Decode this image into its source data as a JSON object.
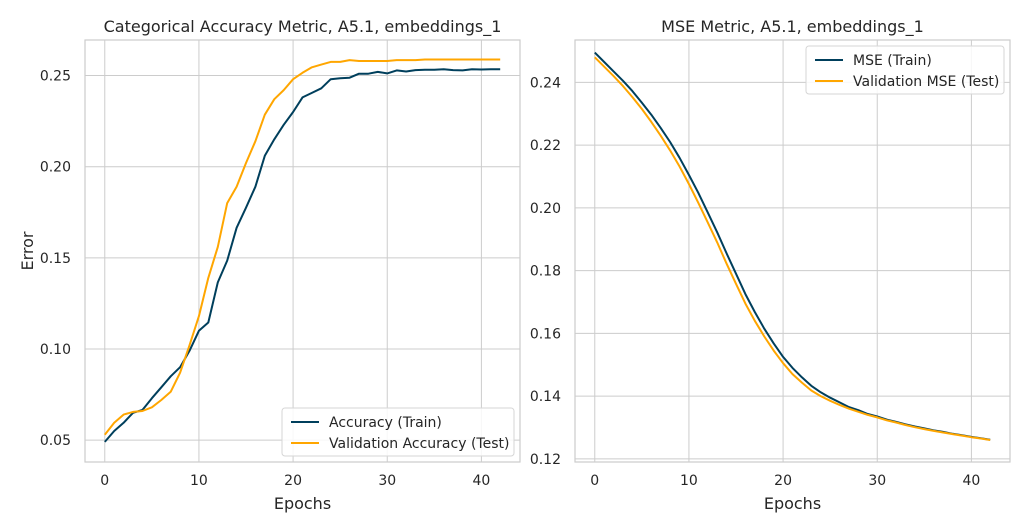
{
  "colors": {
    "train": "#003f5c",
    "test": "#ffa600",
    "grid": "#cccccc",
    "frame": "#cccccc"
  },
  "chart_data": [
    {
      "type": "line",
      "title": "Categorical Accuracy Metric, A5.1, embeddings_1",
      "xlabel": "Epochs",
      "ylabel": "Error",
      "xlim": [
        -2.1,
        44.1
      ],
      "ylim": [
        0.038,
        0.2695
      ],
      "xticks": [
        0,
        10,
        20,
        30,
        40
      ],
      "yticks": [
        0.05,
        0.1,
        0.15,
        0.2,
        0.25
      ],
      "ytick_labels": [
        "0.05",
        "0.10",
        "0.15",
        "0.20",
        "0.25"
      ],
      "grid": true,
      "legend_position": "lower-right",
      "x": [
        0,
        1,
        2,
        3,
        4,
        5,
        6,
        7,
        8,
        9,
        10,
        11,
        12,
        13,
        14,
        15,
        16,
        17,
        18,
        19,
        20,
        21,
        22,
        23,
        24,
        25,
        26,
        27,
        28,
        29,
        30,
        31,
        32,
        33,
        34,
        35,
        36,
        37,
        38,
        39,
        40,
        41,
        42
      ],
      "series": [
        {
          "name": "Accuracy (Train)",
          "color": "#003f5c",
          "values": [
            0.049,
            0.055,
            0.0595,
            0.065,
            0.0665,
            0.073,
            0.079,
            0.085,
            0.09,
            0.099,
            0.11,
            0.1145,
            0.1365,
            0.1485,
            0.1665,
            0.1775,
            0.189,
            0.206,
            0.215,
            0.223,
            0.23,
            0.238,
            0.2405,
            0.243,
            0.248,
            0.2485,
            0.2488,
            0.251,
            0.251,
            0.252,
            0.2512,
            0.2528,
            0.2522,
            0.253,
            0.2532,
            0.2532,
            0.2535,
            0.253,
            0.2528,
            0.2535,
            0.2533,
            0.2535,
            0.2535
          ]
        },
        {
          "name": "Validation Accuracy (Test)",
          "color": "#ffa600",
          "values": [
            0.053,
            0.0595,
            0.064,
            0.0655,
            0.066,
            0.068,
            0.072,
            0.0765,
            0.087,
            0.102,
            0.118,
            0.139,
            0.156,
            0.18,
            0.189,
            0.202,
            0.214,
            0.2285,
            0.237,
            0.242,
            0.248,
            0.2515,
            0.2545,
            0.256,
            0.2575,
            0.2575,
            0.2585,
            0.258,
            0.258,
            0.258,
            0.258,
            0.2585,
            0.2585,
            0.2585,
            0.2588,
            0.2588,
            0.2588,
            0.2588,
            0.2588,
            0.2588,
            0.2588,
            0.2588,
            0.2588
          ]
        }
      ]
    },
    {
      "type": "line",
      "title": "MSE Metric, A5.1, embeddings_1",
      "xlabel": "Epochs",
      "ylabel": "",
      "xlim": [
        -2.1,
        44.1
      ],
      "ylim": [
        0.119,
        0.2535
      ],
      "xticks": [
        0,
        10,
        20,
        30,
        40
      ],
      "yticks": [
        0.12,
        0.14,
        0.16,
        0.18,
        0.2,
        0.22,
        0.24
      ],
      "ytick_labels": [
        "0.12",
        "0.14",
        "0.16",
        "0.18",
        "0.20",
        "0.22",
        "0.24"
      ],
      "grid": true,
      "legend_position": "top-right",
      "x": [
        0,
        1,
        2,
        3,
        4,
        5,
        6,
        7,
        8,
        9,
        10,
        11,
        12,
        13,
        14,
        15,
        16,
        17,
        18,
        19,
        20,
        21,
        22,
        23,
        24,
        25,
        26,
        27,
        28,
        29,
        30,
        31,
        32,
        33,
        34,
        35,
        36,
        37,
        38,
        39,
        40,
        41,
        42
      ],
      "series": [
        {
          "name": "MSE (Train)",
          "color": "#003f5c",
          "values": [
            0.2495,
            0.2465,
            0.2435,
            0.2405,
            0.2372,
            0.2335,
            0.2297,
            0.2255,
            0.221,
            0.216,
            0.2105,
            0.2048,
            0.1985,
            0.1922,
            0.1855,
            0.179,
            0.1725,
            0.1668,
            0.1615,
            0.1568,
            0.1525,
            0.149,
            0.146,
            0.1433,
            0.1412,
            0.1395,
            0.138,
            0.1365,
            0.1355,
            0.1343,
            0.1335,
            0.1325,
            0.1318,
            0.131,
            0.1303,
            0.1297,
            0.1291,
            0.1286,
            0.128,
            0.1275,
            0.127,
            0.1266,
            0.1261
          ]
        },
        {
          "name": "Validation MSE (Test)",
          "color": "#ffa600",
          "values": [
            0.248,
            0.245,
            0.242,
            0.2388,
            0.2353,
            0.2315,
            0.2274,
            0.223,
            0.2183,
            0.2132,
            0.2076,
            0.2016,
            0.1953,
            0.189,
            0.1822,
            0.1758,
            0.1695,
            0.164,
            0.159,
            0.1545,
            0.1505,
            0.147,
            0.1443,
            0.1418,
            0.14,
            0.1385,
            0.1372,
            0.136,
            0.135,
            0.134,
            0.1332,
            0.1323,
            0.1316,
            0.1308,
            0.1301,
            0.1295,
            0.1289,
            0.1284,
            0.1279,
            0.1274,
            0.1269,
            0.1265,
            0.126
          ]
        }
      ]
    }
  ]
}
